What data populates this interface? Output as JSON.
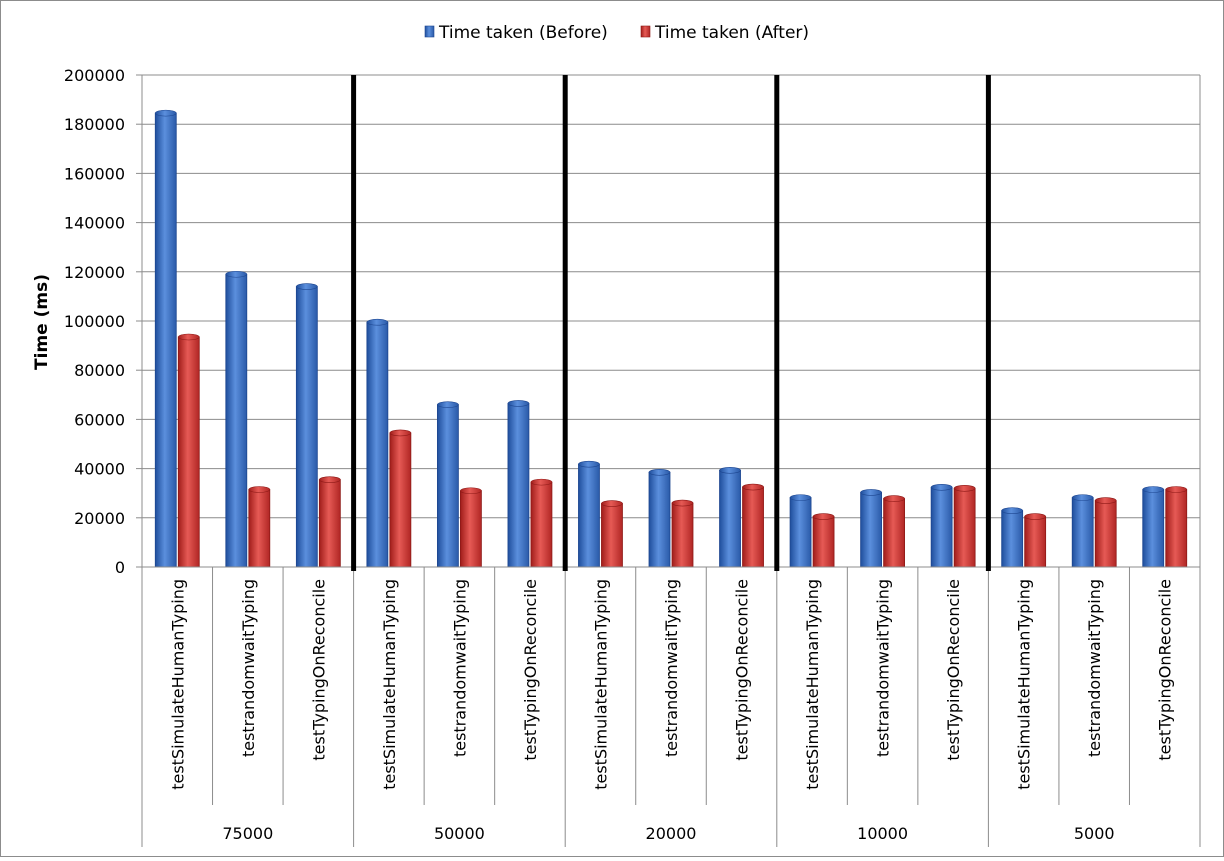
{
  "colors": {
    "before": "#3a6fc2",
    "after": "#c8312e",
    "grid": "#8c8c8c",
    "axis": "#8c8c8c",
    "separator": "#000000",
    "text": "#000000"
  },
  "chart_data": {
    "type": "bar",
    "title": "",
    "ylabel": "Time (ms)",
    "ylim": [
      0,
      200000
    ],
    "y_ticks": [
      "0",
      "20000",
      "40000",
      "60000",
      "80000",
      "100000",
      "120000",
      "140000",
      "160000",
      "180000",
      "200000"
    ],
    "grid": true,
    "legend_position": "top-center",
    "groups": [
      "75000",
      "50000",
      "20000",
      "10000",
      "5000"
    ],
    "categories": [
      "testSimulateHumanTyping",
      "testrandomwaitTyping",
      "testTypingOnReconcile",
      "testSimulateHumanTyping",
      "testrandomwaitTyping",
      "testTypingOnReconcile",
      "testSimulateHumanTyping",
      "testrandomwaitTyping",
      "testTypingOnReconcile",
      "testSimulateHumanTyping",
      "testrandomwaitTyping",
      "testTypingOnReconcile",
      "testSimulateHumanTyping",
      "testrandomwaitTyping",
      "testTypingOnReconcile"
    ],
    "series": [
      {
        "name": "Time taken (Before)",
        "values": [
          184500,
          119000,
          114000,
          99500,
          66000,
          66500,
          41800,
          38500,
          39300,
          28200,
          30300,
          32400,
          22900,
          28200,
          31500
        ]
      },
      {
        "name": "Time taken (After)",
        "values": [
          93500,
          31500,
          35500,
          54500,
          31000,
          34500,
          25800,
          26000,
          32500,
          20500,
          27800,
          32000,
          20500,
          27000,
          31500
        ]
      }
    ]
  }
}
